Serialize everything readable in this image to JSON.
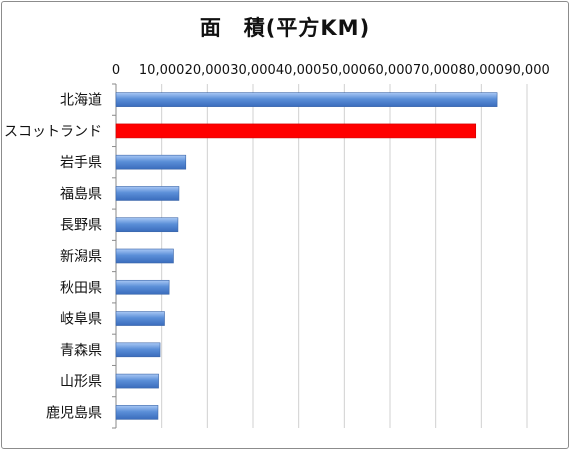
{
  "chart_data": {
    "type": "bar",
    "orientation": "horizontal",
    "title": "面　積(平方KM)",
    "xlabel": "",
    "ylabel": "",
    "xlim": [
      0,
      90000
    ],
    "tick_values": [
      0,
      10000,
      20000,
      30000,
      40000,
      50000,
      60000,
      70000,
      80000,
      90000
    ],
    "tick_labels": [
      "0",
      "10,000",
      "20,000",
      "30,000",
      "40,000",
      "50,000",
      "60,000",
      "70,000",
      "80,000",
      "90,000"
    ],
    "categories": [
      "北海道",
      "スコットランド",
      "岩手県",
      "福島県",
      "長野県",
      "新潟県",
      "秋田県",
      "岐阜県",
      "青森県",
      "山形県",
      "鹿児島県"
    ],
    "values": [
      83450,
      78772,
      15279,
      13783,
      13562,
      12584,
      11636,
      10621,
      9645,
      9323,
      9187
    ],
    "bar_colors": [
      "#5b8fd8",
      "#ff0000",
      "#5b8fd8",
      "#5b8fd8",
      "#5b8fd8",
      "#5b8fd8",
      "#5b8fd8",
      "#5b8fd8",
      "#5b8fd8",
      "#5b8fd8",
      "#5b8fd8"
    ],
    "grid": true,
    "legend": "none"
  }
}
